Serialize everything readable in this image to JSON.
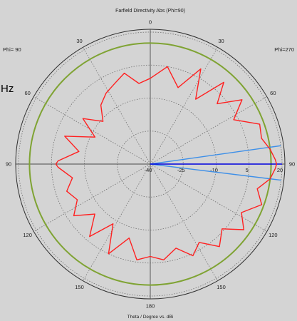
{
  "chart_data": {
    "type": "polar",
    "title": "Farfield Directivity Abs (Phi=90)",
    "xlabel": "Theta / Degree vs.  dBi",
    "left_label": "Phi= 90",
    "right_label": "Phi=270",
    "partial_text": "Hz",
    "angle_ticks": [
      "0",
      "30",
      "60",
      "90",
      "120",
      "150",
      "180",
      "150",
      "120",
      "90",
      "60",
      "30"
    ],
    "radial_range": [
      -40,
      20
    ],
    "radial_ticks": [
      "-40",
      "-25",
      "-10",
      "5",
      "20"
    ],
    "radial_grid": [
      -40,
      -25,
      -10,
      5,
      20
    ],
    "threshold_circle_dbi": 15,
    "main_lobe_direction_deg": 90,
    "beam_width_lines_deg": [
      82,
      97
    ],
    "colors": {
      "pattern": "#ff2020",
      "threshold_circle": "#7fa333",
      "main_lobe": "#0000dd",
      "beam_width": "#3d8fe8",
      "grid": "#707070",
      "background": "#d4d4d4"
    },
    "series": [
      {
        "theta": [
          0,
          10,
          20,
          28,
          35,
          42,
          48,
          55,
          62,
          70,
          77,
          83,
          88,
          90,
          92,
          97,
          103,
          110,
          118,
          125,
          132,
          140,
          148,
          155,
          163,
          172,
          180,
          188,
          196,
          205,
          212,
          220,
          228,
          236,
          244,
          252,
          260,
          268,
          270,
          272,
          280,
          288,
          296,
          304,
          312,
          320,
          328,
          336,
          344,
          352,
          360
        ],
        "dbi": [
          -1,
          5,
          -3,
          9,
          -4,
          10,
          1,
          11,
          3,
          13,
          12,
          15,
          17,
          17.5,
          17,
          15,
          10,
          14,
          7,
          12,
          4,
          9,
          2,
          6,
          0,
          4,
          2,
          4,
          -5,
          5,
          -8,
          3,
          -6,
          2,
          -3,
          0,
          -4,
          2,
          3,
          2,
          -7,
          1,
          -12,
          -3,
          -11,
          -5,
          -2,
          0,
          3,
          -3,
          -1
        ]
      }
    ]
  }
}
